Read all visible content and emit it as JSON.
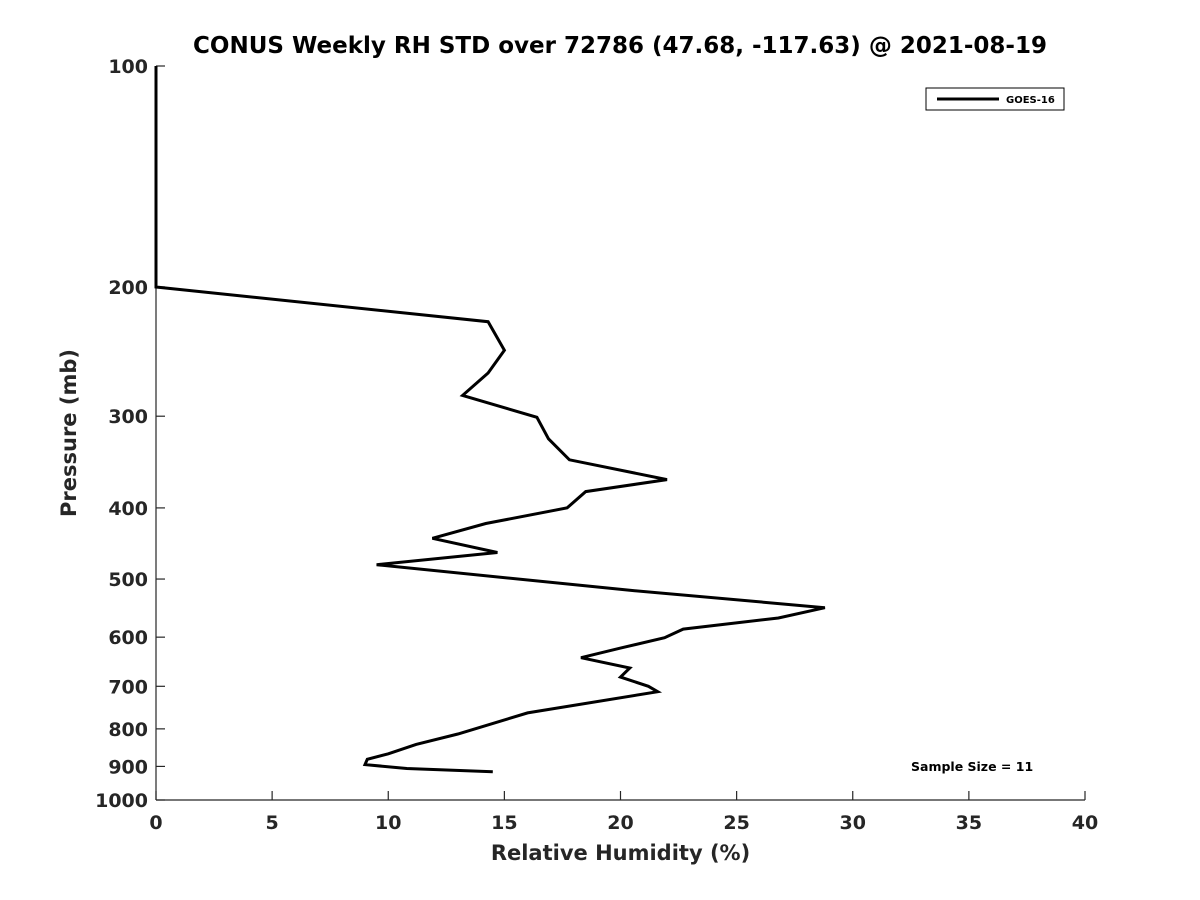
{
  "chart_data": {
    "type": "line",
    "title": "CONUS Weekly RH STD over 72786 (47.68, -117.63) @ 2021-08-19",
    "xlabel": "Relative Humidity (%)",
    "ylabel": "Pressure (mb)",
    "xlim": [
      0,
      40
    ],
    "ylim": [
      100,
      1000
    ],
    "yscale": "log",
    "yreversed": true,
    "grid": false,
    "x_ticks": [
      "0",
      "5",
      "10",
      "15",
      "20",
      "25",
      "30",
      "35",
      "40"
    ],
    "y_ticks": [
      "100",
      "200",
      "300",
      "400",
      "500",
      "600",
      "700",
      "800",
      "900",
      "1000"
    ],
    "legend": {
      "position": "top-right",
      "entries": [
        "GOES-16"
      ]
    },
    "annotation": "Sample Size = 11",
    "series": [
      {
        "name": "GOES-16",
        "color": "#000000",
        "points": [
          [
            0.0,
            100
          ],
          [
            0.0,
            150
          ],
          [
            0.0,
            200
          ],
          [
            14.3,
            223
          ],
          [
            15.0,
            244
          ],
          [
            14.3,
            262
          ],
          [
            13.2,
            281
          ],
          [
            16.4,
            301
          ],
          [
            16.9,
            322
          ],
          [
            17.8,
            344
          ],
          [
            22.0,
            366
          ],
          [
            18.5,
            380
          ],
          [
            17.7,
            400
          ],
          [
            14.2,
            420
          ],
          [
            11.9,
            440
          ],
          [
            14.7,
            460
          ],
          [
            9.5,
            478
          ],
          [
            20.4,
            518
          ],
          [
            28.8,
            547
          ],
          [
            26.8,
            565
          ],
          [
            22.7,
            585
          ],
          [
            21.9,
            601
          ],
          [
            20.0,
            621
          ],
          [
            18.3,
            640
          ],
          [
            20.4,
            661
          ],
          [
            20.0,
            680
          ],
          [
            21.2,
            700
          ],
          [
            21.6,
            712
          ],
          [
            16.0,
            761
          ],
          [
            13.0,
            813
          ],
          [
            11.2,
            840
          ],
          [
            10.0,
            865
          ],
          [
            9.1,
            880
          ],
          [
            9.0,
            895
          ],
          [
            10.8,
            906
          ],
          [
            14.5,
            915
          ]
        ]
      }
    ]
  }
}
